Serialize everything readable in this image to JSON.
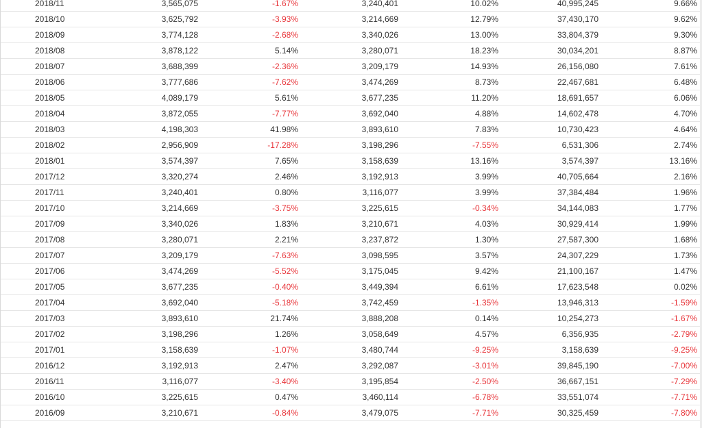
{
  "table": {
    "rows": [
      [
        "2018/11",
        "3,565,075",
        "-1.67%",
        "3,240,401",
        "10.02%",
        "40,995,245",
        "9.66%"
      ],
      [
        "2018/10",
        "3,625,792",
        "-3.93%",
        "3,214,669",
        "12.79%",
        "37,430,170",
        "9.62%"
      ],
      [
        "2018/09",
        "3,774,128",
        "-2.68%",
        "3,340,026",
        "13.00%",
        "33,804,379",
        "9.30%"
      ],
      [
        "2018/08",
        "3,878,122",
        "5.14%",
        "3,280,071",
        "18.23%",
        "30,034,201",
        "8.87%"
      ],
      [
        "2018/07",
        "3,688,399",
        "-2.36%",
        "3,209,179",
        "14.93%",
        "26,156,080",
        "7.61%"
      ],
      [
        "2018/06",
        "3,777,686",
        "-7.62%",
        "3,474,269",
        "8.73%",
        "22,467,681",
        "6.48%"
      ],
      [
        "2018/05",
        "4,089,179",
        "5.61%",
        "3,677,235",
        "11.20%",
        "18,691,657",
        "6.06%"
      ],
      [
        "2018/04",
        "3,872,055",
        "-7.77%",
        "3,692,040",
        "4.88%",
        "14,602,478",
        "4.70%"
      ],
      [
        "2018/03",
        "4,198,303",
        "41.98%",
        "3,893,610",
        "7.83%",
        "10,730,423",
        "4.64%"
      ],
      [
        "2018/02",
        "2,956,909",
        "-17.28%",
        "3,198,296",
        "-7.55%",
        "6,531,306",
        "2.74%"
      ],
      [
        "2018/01",
        "3,574,397",
        "7.65%",
        "3,158,639",
        "13.16%",
        "3,574,397",
        "13.16%"
      ],
      [
        "2017/12",
        "3,320,274",
        "2.46%",
        "3,192,913",
        "3.99%",
        "40,705,664",
        "2.16%"
      ],
      [
        "2017/11",
        "3,240,401",
        "0.80%",
        "3,116,077",
        "3.99%",
        "37,384,484",
        "1.96%"
      ],
      [
        "2017/10",
        "3,214,669",
        "-3.75%",
        "3,225,615",
        "-0.34%",
        "34,144,083",
        "1.77%"
      ],
      [
        "2017/09",
        "3,340,026",
        "1.83%",
        "3,210,671",
        "4.03%",
        "30,929,414",
        "1.99%"
      ],
      [
        "2017/08",
        "3,280,071",
        "2.21%",
        "3,237,872",
        "1.30%",
        "27,587,300",
        "1.68%"
      ],
      [
        "2017/07",
        "3,209,179",
        "-7.63%",
        "3,098,595",
        "3.57%",
        "24,307,229",
        "1.73%"
      ],
      [
        "2017/06",
        "3,474,269",
        "-5.52%",
        "3,175,045",
        "9.42%",
        "21,100,167",
        "1.47%"
      ],
      [
        "2017/05",
        "3,677,235",
        "-0.40%",
        "3,449,394",
        "6.61%",
        "17,623,548",
        "0.02%"
      ],
      [
        "2017/04",
        "3,692,040",
        "-5.18%",
        "3,742,459",
        "-1.35%",
        "13,946,313",
        "-1.59%"
      ],
      [
        "2017/03",
        "3,893,610",
        "21.74%",
        "3,888,208",
        "0.14%",
        "10,254,273",
        "-1.67%"
      ],
      [
        "2017/02",
        "3,198,296",
        "1.26%",
        "3,058,649",
        "4.57%",
        "6,356,935",
        "-2.79%"
      ],
      [
        "2017/01",
        "3,158,639",
        "-1.07%",
        "3,480,744",
        "-9.25%",
        "3,158,639",
        "-9.25%"
      ],
      [
        "2016/12",
        "3,192,913",
        "2.47%",
        "3,292,087",
        "-3.01%",
        "39,845,190",
        "-7.00%"
      ],
      [
        "2016/11",
        "3,116,077",
        "-3.40%",
        "3,195,854",
        "-2.50%",
        "36,667,151",
        "-7.29%"
      ],
      [
        "2016/10",
        "3,225,615",
        "0.47%",
        "3,460,114",
        "-6.78%",
        "33,551,074",
        "-7.71%"
      ],
      [
        "2016/09",
        "3,210,671",
        "-0.84%",
        "3,479,075",
        "-7.71%",
        "30,325,459",
        "-7.80%"
      ]
    ]
  },
  "colors": {
    "text": "#333333",
    "negative": "#e8363b",
    "row_border": "#e6e6e6",
    "background": "#ffffff"
  }
}
